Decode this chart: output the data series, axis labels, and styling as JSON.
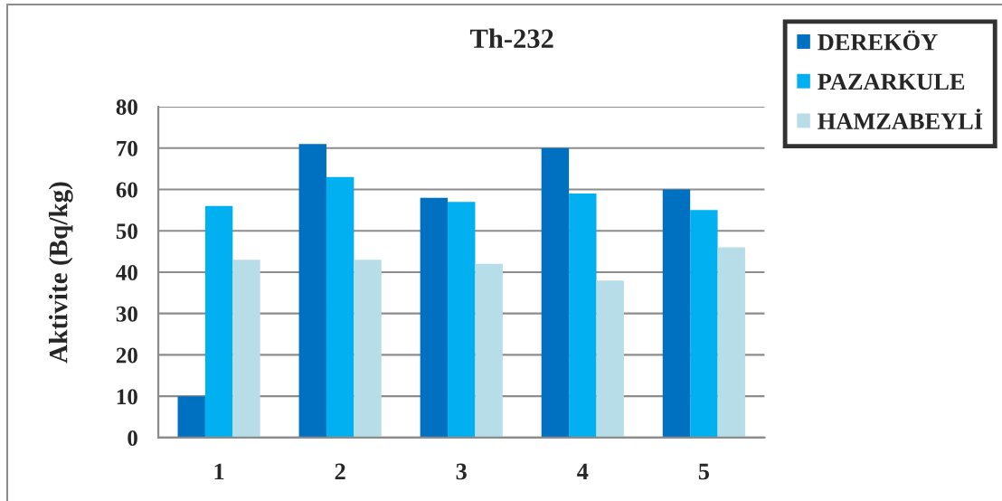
{
  "chart_data": {
    "type": "bar",
    "title": "Th-232",
    "ylabel": "Aktivite (Bq/kg)",
    "categories": [
      "1",
      "2",
      "3",
      "4",
      "5"
    ],
    "series": [
      {
        "name": "DEREKÖY",
        "color": "#0070c0",
        "values": [
          10,
          71,
          58,
          70,
          60
        ]
      },
      {
        "name": "PAZARKULE",
        "color": "#00b0f0",
        "values": [
          56,
          63,
          57,
          59,
          55
        ]
      },
      {
        "name": "HAMZABEYLİ",
        "color": "#b7dee8",
        "values": [
          43,
          43,
          42,
          38,
          46
        ]
      }
    ],
    "ylim": [
      0,
      80
    ],
    "yticks": [
      0,
      10,
      20,
      30,
      40,
      50,
      60,
      70,
      80
    ],
    "grid": "y",
    "legend": "top right"
  }
}
